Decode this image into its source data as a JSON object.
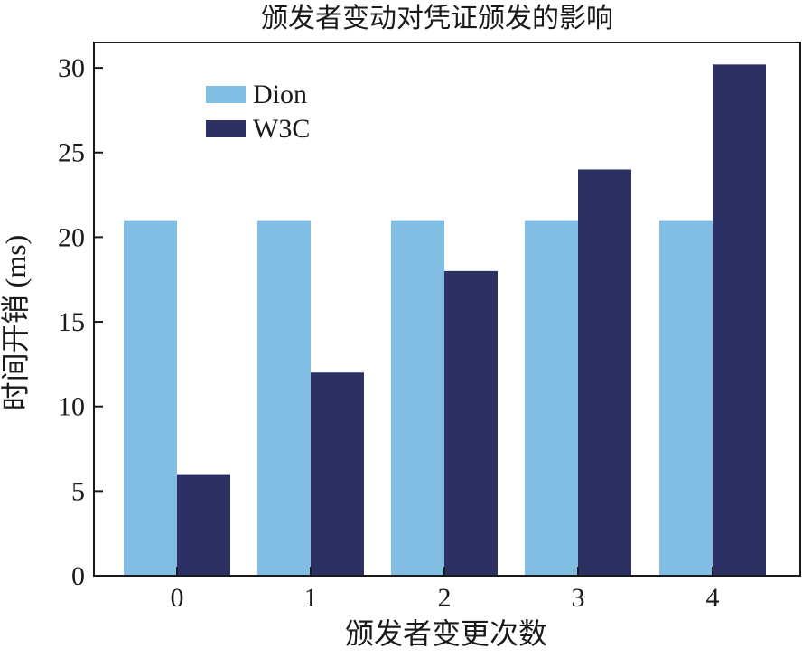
{
  "chart_data": {
    "type": "bar",
    "title": "颁发者变动对凭证颁发的影响",
    "xlabel": "颁发者变更次数",
    "ylabel": "时间开销 (ms)",
    "categories": [
      "0",
      "1",
      "2",
      "3",
      "4"
    ],
    "series": [
      {
        "name": "Dion",
        "values": [
          21,
          21,
          21,
          21,
          21
        ],
        "color": "#82bde3"
      },
      {
        "name": "W3C",
        "values": [
          6,
          12,
          18,
          24,
          30.2
        ],
        "color": "#2b3162"
      }
    ],
    "ylim": [
      0,
      31.5
    ],
    "yticks": [
      0,
      5,
      10,
      15,
      20,
      25,
      30
    ],
    "grid": false,
    "legend_position": "top-left"
  }
}
